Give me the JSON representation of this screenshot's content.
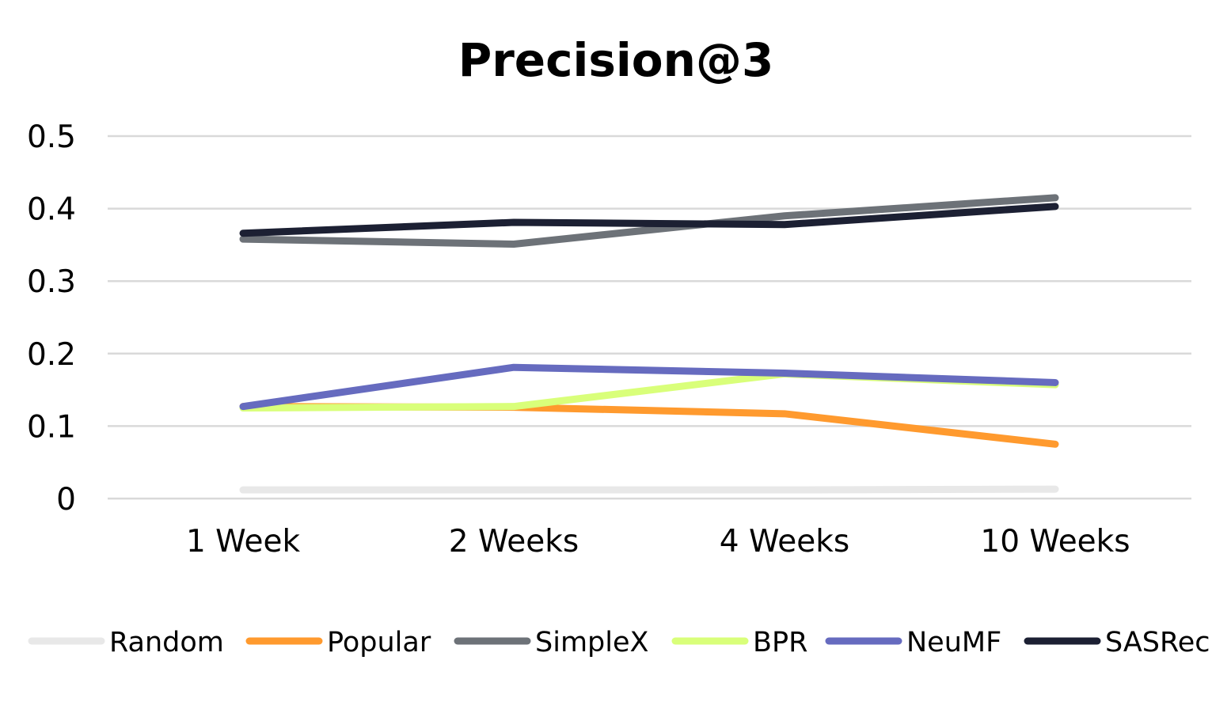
{
  "chart_data": {
    "type": "line",
    "title": "Precision@3",
    "xlabel": "",
    "ylabel": "",
    "categories": [
      "1 Week",
      "2 Weeks",
      "4 Weeks",
      "10 Weeks"
    ],
    "yticks": [
      "0",
      "0.1",
      "0.2",
      "0.3",
      "0.4",
      "0.5"
    ],
    "ylim": [
      0,
      0.5
    ],
    "grid": true,
    "legend_position": "bottom",
    "series": [
      {
        "name": "Random",
        "color": "#e8e8e8",
        "values": [
          0.012,
          0.012,
          0.012,
          0.013
        ]
      },
      {
        "name": "Popular",
        "color": "#ff9a2e",
        "values": [
          0.127,
          0.126,
          0.117,
          0.075
        ]
      },
      {
        "name": "SimpleX",
        "color": "#6d7278",
        "values": [
          0.358,
          0.351,
          0.39,
          0.415
        ]
      },
      {
        "name": "BPR",
        "color": "#d9ff7a",
        "values": [
          0.125,
          0.127,
          0.172,
          0.157
        ]
      },
      {
        "name": "NeuMF",
        "color": "#666bbf",
        "values": [
          0.127,
          0.181,
          0.173,
          0.16
        ]
      },
      {
        "name": "SASRec",
        "color": "#1c2033",
        "values": [
          0.366,
          0.381,
          0.378,
          0.403
        ]
      }
    ]
  }
}
